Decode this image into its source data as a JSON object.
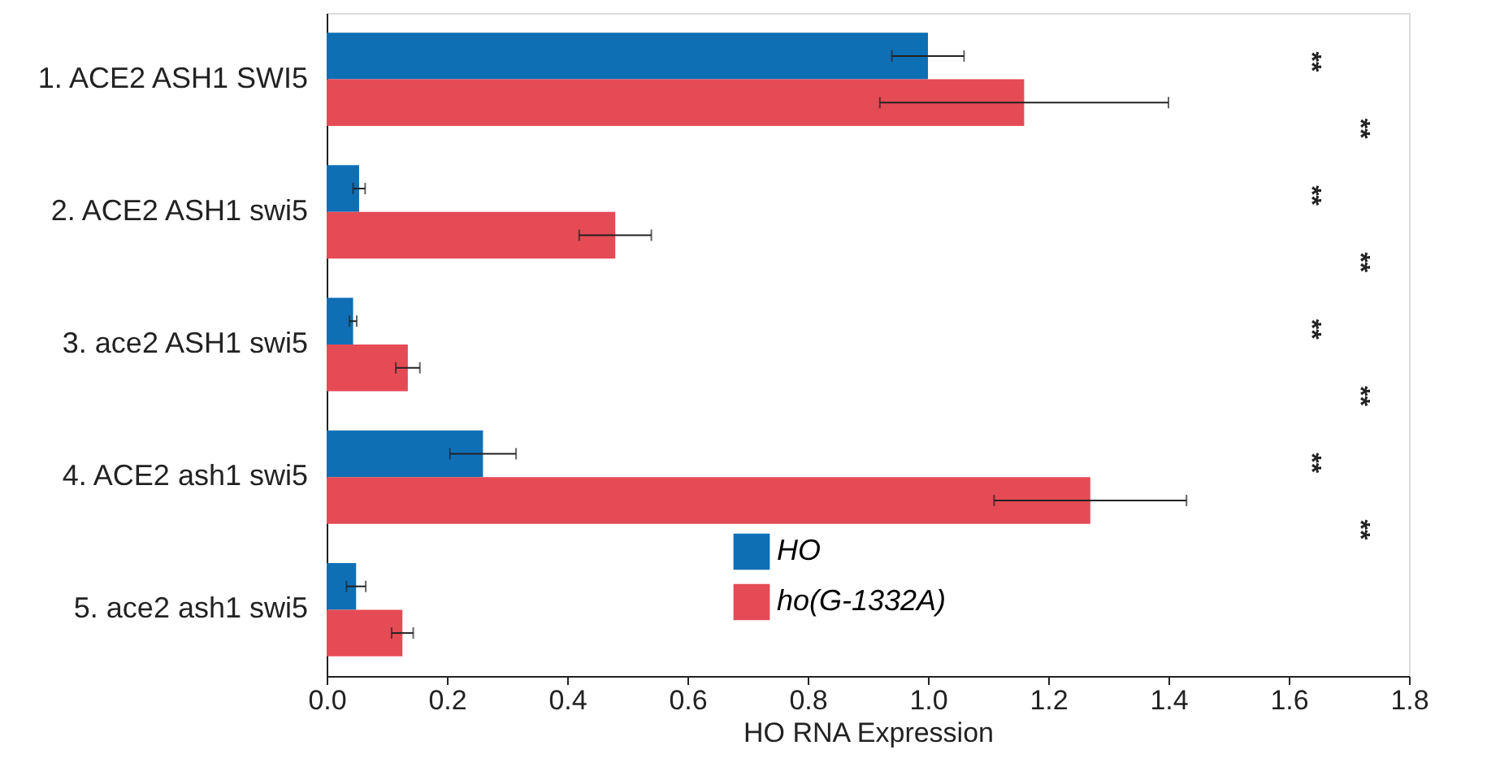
{
  "chart_data": {
    "type": "bar",
    "orientation": "horizontal",
    "categories": [
      "1.  ACE2  ASH1  SWI5",
      "2.  ACE2  ASH1  swi5",
      "3.  ace2   ASH1  swi5",
      "4.  ACE2  ash1   swi5",
      "5.  ace2   ash1   swi5"
    ],
    "series": [
      {
        "name": "HO",
        "color": "#0f6fb5",
        "values": [
          1.0,
          0.054,
          0.044,
          0.26,
          0.049
        ],
        "errors": [
          0.06,
          0.01,
          0.006,
          0.055,
          0.016
        ]
      },
      {
        "name": "ho(G-1332A)",
        "color": "#e54b55",
        "values": [
          1.16,
          0.48,
          0.135,
          1.27,
          0.126
        ],
        "errors": [
          0.24,
          0.06,
          0.02,
          0.16,
          0.018
        ]
      }
    ],
    "xlabel": "HO RNA Expression",
    "xlim": [
      0,
      1.8
    ],
    "xticks": [
      {
        "value": 0,
        "label": "0.0"
      },
      0.2,
      0.4,
      0.6,
      0.8,
      {
        "value": 1,
        "label": "1.0"
      },
      1.2,
      1.4,
      1.6,
      1.8
    ],
    "annotations": [
      "**",
      "**",
      "**",
      "**",
      "**",
      "**",
      "**",
      "**"
    ],
    "legend": "bottom",
    "grid": false
  }
}
